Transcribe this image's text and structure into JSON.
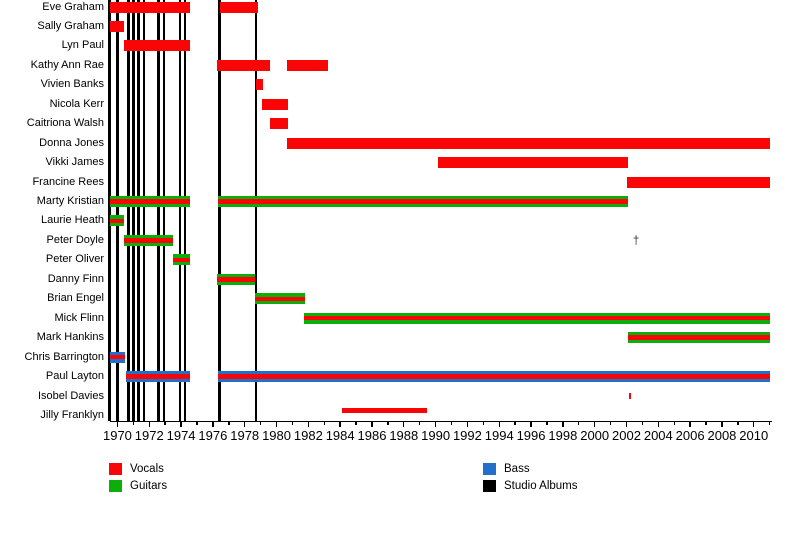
{
  "chart_data": {
    "type": "timeline",
    "description": "Band members timeline with studio album release lines",
    "x_axis": {
      "start": 1969.5,
      "end": 2011.05,
      "major_tick_years": [
        1970,
        1972,
        1974,
        1976,
        1978,
        1980,
        1982,
        1984,
        1986,
        1988,
        1990,
        1992,
        1994,
        1996,
        1998,
        2000,
        2002,
        2004,
        2006,
        2008,
        2010
      ],
      "minor_tick_step": 1,
      "grid": false
    },
    "colors": {
      "vocals": "#fa0505",
      "guitars": "#0cae0c",
      "bass": "#2070cc",
      "studio_albums": "#000000"
    },
    "album_release_lines": [
      1969.5,
      1970.0,
      1970.68,
      1971.0,
      1971.31,
      1971.67,
      1972.57,
      1972.93,
      1973.93,
      1974.25,
      1976.41,
      1978.71
    ],
    "dagger_symbol": "†",
    "members": [
      {
        "name": "Eve Graham",
        "roles": [
          "vocals"
        ],
        "periods": [
          [
            1969.55,
            1974.56
          ],
          [
            1976.45,
            1978.82
          ]
        ]
      },
      {
        "name": "Sally Graham",
        "roles": [
          "vocals"
        ],
        "periods": [
          [
            1969.55,
            1970.41
          ]
        ]
      },
      {
        "name": "Lyn Paul",
        "roles": [
          "vocals"
        ],
        "periods": [
          [
            1970.41,
            1974.56
          ]
        ]
      },
      {
        "name": "Kathy Ann Rae",
        "roles": [
          "vocals"
        ],
        "periods": [
          [
            1976.26,
            1979.56
          ],
          [
            1980.66,
            1983.23
          ]
        ]
      },
      {
        "name": "Vivien Banks",
        "roles": [
          "vocals"
        ],
        "periods": [
          [
            1978.69,
            1979.17
          ]
        ]
      },
      {
        "name": "Nicola Kerr",
        "roles": [
          "vocals"
        ],
        "periods": [
          [
            1979.07,
            1980.74
          ]
        ]
      },
      {
        "name": "Caitriona Walsh",
        "roles": [
          "vocals"
        ],
        "periods": [
          [
            1979.59,
            1980.74
          ]
        ]
      },
      {
        "name": "Donna Jones",
        "roles": [
          "vocals"
        ],
        "periods": [
          [
            1980.64,
            2011.02
          ]
        ]
      },
      {
        "name": "Vikki James",
        "roles": [
          "vocals"
        ],
        "periods": [
          [
            1990.15,
            2002.11
          ]
        ]
      },
      {
        "name": "Francine Rees",
        "roles": [
          "vocals"
        ],
        "periods": [
          [
            2002.05,
            2011.02
          ]
        ]
      },
      {
        "name": "Marty Kristian",
        "roles": [
          "vocals",
          "guitars"
        ],
        "periods": [
          [
            1969.55,
            1974.56
          ],
          [
            1976.33,
            2002.09
          ]
        ]
      },
      {
        "name": "Laurie Heath",
        "roles": [
          "vocals",
          "guitars"
        ],
        "periods": [
          [
            1969.55,
            1970.41
          ]
        ]
      },
      {
        "name": "Peter Doyle",
        "roles": [
          "vocals",
          "guitars"
        ],
        "periods": [
          [
            1970.41,
            1973.49
          ]
        ],
        "death_marker_year": 2002.6
      },
      {
        "name": "Peter Oliver",
        "roles": [
          "vocals",
          "guitars"
        ],
        "periods": [
          [
            1973.49,
            1974.56
          ]
        ]
      },
      {
        "name": "Danny Finn",
        "roles": [
          "vocals",
          "guitars"
        ],
        "periods": [
          [
            1976.24,
            1978.65
          ]
        ]
      },
      {
        "name": "Brian Engel",
        "roles": [
          "vocals",
          "guitars"
        ],
        "periods": [
          [
            1978.65,
            1981.79
          ]
        ]
      },
      {
        "name": "Mick Flinn",
        "roles": [
          "vocals",
          "guitars"
        ],
        "periods": [
          [
            1981.75,
            2011.02
          ]
        ]
      },
      {
        "name": "Mark Hankins",
        "roles": [
          "vocals",
          "guitars"
        ],
        "periods": [
          [
            2002.09,
            2011.02
          ]
        ]
      },
      {
        "name": "Chris Barrington",
        "roles": [
          "vocals",
          "bass"
        ],
        "periods": [
          [
            1969.5,
            1970.49
          ]
        ]
      },
      {
        "name": "Paul Layton",
        "roles": [
          "vocals",
          "bass"
        ],
        "periods": [
          [
            1970.56,
            1974.56
          ],
          [
            1976.32,
            2011.02
          ]
        ]
      },
      {
        "name": "Isobel Davies",
        "roles": [
          "vocals"
        ],
        "periods": [
          [
            2002.13,
            2002.27
          ]
        ],
        "style": "tick"
      },
      {
        "name": "Jilly Franklyn",
        "roles": [
          "vocals"
        ],
        "periods": [
          [
            1984.12,
            1989.44
          ]
        ],
        "style": "thin"
      }
    ],
    "legend": [
      {
        "label": "Vocals",
        "color": "#fa0505"
      },
      {
        "label": "Guitars",
        "color": "#0cae0c"
      },
      {
        "label": "Bass",
        "color": "#2070cc"
      },
      {
        "label": "Studio Albums",
        "color": "#000000"
      }
    ]
  }
}
